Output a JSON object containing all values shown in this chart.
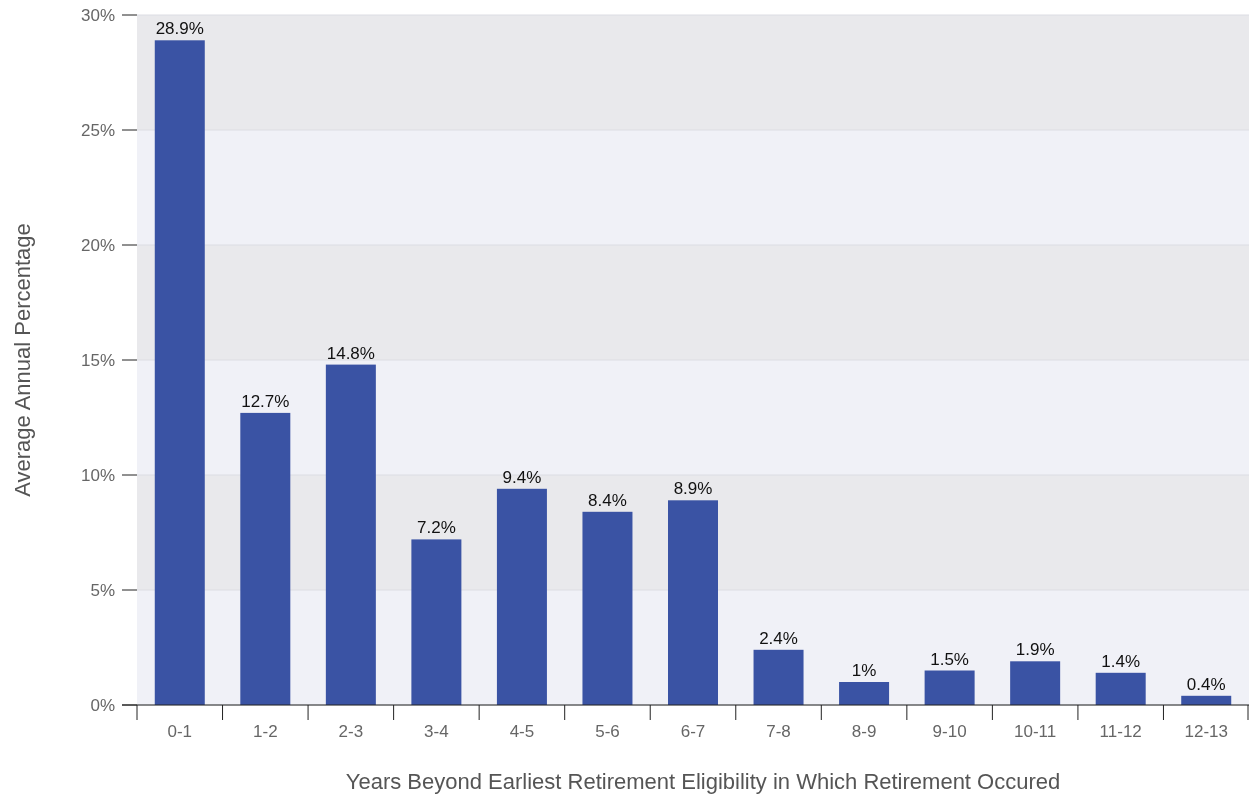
{
  "chart_data": {
    "type": "bar",
    "xlabel": "Years Beyond Earliest Retirement Eligibility in Which Retirement Occured",
    "ylabel": "Average Annual Percentage",
    "categories": [
      "0-1",
      "1-2",
      "2-3",
      "3-4",
      "4-5",
      "5-6",
      "6-7",
      "7-8",
      "8-9",
      "9-10",
      "10-11",
      "11-12",
      "12-13"
    ],
    "values": [
      28.9,
      12.7,
      14.8,
      7.2,
      9.4,
      8.4,
      8.9,
      2.4,
      1,
      1.5,
      1.9,
      1.4,
      0.4
    ],
    "value_labels": [
      "28.9%",
      "12.7%",
      "14.8%",
      "7.2%",
      "9.4%",
      "8.4%",
      "8.9%",
      "2.4%",
      "1%",
      "1.5%",
      "1.9%",
      "1.4%",
      "0.4%"
    ],
    "color": "#3a53a4",
    "ylim": [
      0,
      30
    ],
    "yticks": [
      {
        "value": 0,
        "label": "0%"
      },
      {
        "value": 5,
        "label": "5%"
      },
      {
        "value": 10,
        "label": "10%"
      },
      {
        "value": 15,
        "label": "15%"
      },
      {
        "value": 20,
        "label": "20%"
      },
      {
        "value": 25,
        "label": "25%"
      },
      {
        "value": 30,
        "label": "30%"
      }
    ],
    "grid": "y"
  }
}
